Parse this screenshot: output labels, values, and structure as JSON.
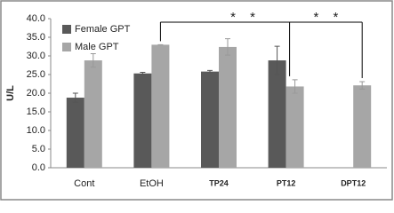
{
  "chart_data": {
    "type": "bar",
    "y_label": "U/L",
    "categories": [
      "Cont",
      "EtOH",
      "TP24",
      "PT12",
      "DPT12"
    ],
    "series": [
      {
        "name": "Female GPT",
        "color": "#595959",
        "values": [
          18.8,
          25.3,
          25.8,
          28.8,
          null
        ],
        "errors": [
          1.2,
          0.3,
          0.3,
          3.8,
          null
        ]
      },
      {
        "name": "Male GPT",
        "color": "#a6a6a6",
        "values": [
          28.8,
          33.0,
          32.4,
          21.8,
          22.1
        ],
        "errors": [
          1.8,
          0,
          2.2,
          1.8,
          1.0
        ]
      }
    ],
    "ylim": [
      0,
      40
    ],
    "yticks": [
      {
        "value": 0,
        "label": "0.0"
      },
      {
        "value": 5,
        "label": "5.0"
      },
      {
        "value": 10,
        "label": "10.0"
      },
      {
        "value": 15,
        "label": "15.0"
      },
      {
        "value": 20,
        "label": "20.0"
      },
      {
        "value": 25,
        "label": "25.0"
      },
      {
        "value": 30,
        "label": "30.0"
      },
      {
        "value": 35,
        "label": "35.0"
      },
      {
        "value": 40,
        "label": "40.0"
      }
    ],
    "annotations": [
      "* *",
      "* *"
    ],
    "grid": false
  }
}
